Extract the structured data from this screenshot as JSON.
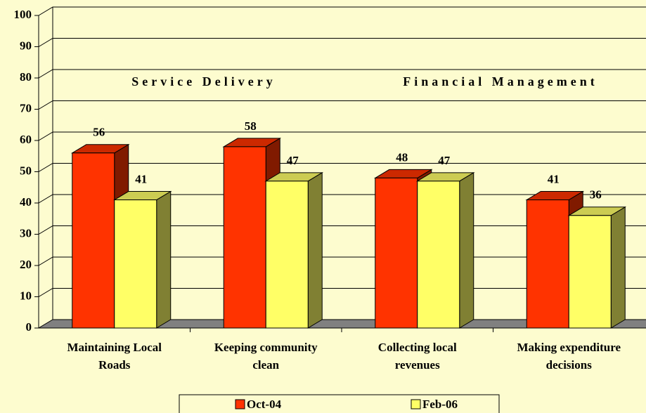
{
  "chart_data": {
    "type": "bar3d",
    "annotations": [
      "Service Delivery",
      "Financial Management"
    ],
    "categories": [
      "Maintaining Local Roads",
      "Keeping community clean",
      "Collecting local revenues",
      "Making expenditure decisions"
    ],
    "series": [
      {
        "name": "Oct-04",
        "color": "#ff3300",
        "values": [
          56,
          58,
          48,
          41
        ]
      },
      {
        "name": "Feb-06",
        "color": "#ffff66",
        "values": [
          41,
          47,
          47,
          36
        ]
      }
    ],
    "ylim": [
      0,
      100
    ],
    "yticks": [
      0,
      10,
      20,
      30,
      40,
      50,
      60,
      70,
      80,
      90,
      100
    ],
    "grid": true
  }
}
